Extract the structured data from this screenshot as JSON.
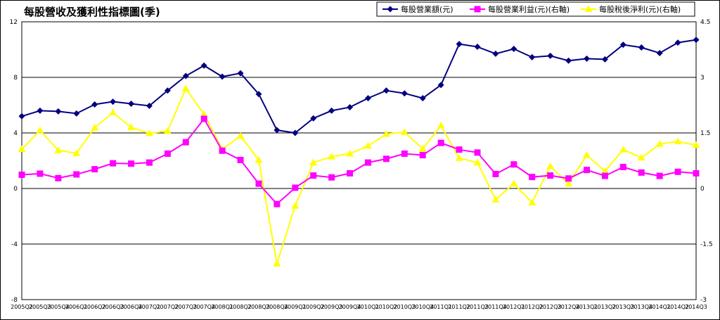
{
  "chart_data": {
    "type": "line",
    "title": "每股營收及獲利性指標圖(季)",
    "x": [
      "2005Q2",
      "2005Q3",
      "2005Q4",
      "2006Q1",
      "2006Q2",
      "2006Q3",
      "2006Q4",
      "2007Q1",
      "2007Q2",
      "2007Q3",
      "2007Q4",
      "2008Q1",
      "2008Q2",
      "2008Q3",
      "2008Q4",
      "2009Q1",
      "2009Q2",
      "2009Q3",
      "2009Q4",
      "2010Q1",
      "2010Q2",
      "2010Q3",
      "2010Q4",
      "2011Q1",
      "2011Q2",
      "2011Q3",
      "2011Q4",
      "2012Q1",
      "2012Q2",
      "2012Q3",
      "2012Q4",
      "2013Q1",
      "2013Q2",
      "2013Q3",
      "2013Q4",
      "2014Q1",
      "2014Q2",
      "2014Q3"
    ],
    "y_left": {
      "min": -8,
      "max": 12,
      "ticks": [
        12,
        8,
        4,
        0,
        -4,
        -8
      ]
    },
    "y_right": {
      "min": -3,
      "max": 4.5,
      "ticks": [
        4.5,
        3,
        1.5,
        0,
        -1.5,
        -3
      ]
    },
    "grid": true,
    "legend_placement": "top-right",
    "series": [
      {
        "name": "每股營業額(元)",
        "axis": "left",
        "color": "#000080",
        "marker": "diamond",
        "values": [
          5.2,
          5.6,
          5.55,
          5.4,
          6.05,
          6.25,
          6.1,
          5.95,
          7.05,
          8.1,
          8.85,
          8.05,
          8.3,
          6.8,
          4.2,
          4.0,
          5.05,
          5.6,
          5.85,
          6.5,
          7.05,
          6.85,
          6.5,
          7.45,
          10.4,
          10.2,
          9.7,
          10.05,
          9.45,
          9.55,
          9.2,
          9.35,
          9.3,
          10.35,
          10.15,
          9.75,
          10.5,
          10.7
        ]
      },
      {
        "name": "每股營業利益(元)(右軸)",
        "axis": "right",
        "color": "#FF00FF",
        "marker": "square",
        "values": [
          0.37,
          0.4,
          0.28,
          0.38,
          0.52,
          0.68,
          0.67,
          0.7,
          0.94,
          1.25,
          1.88,
          1.02,
          0.77,
          0.13,
          -0.42,
          0.02,
          0.35,
          0.3,
          0.41,
          0.7,
          0.8,
          0.94,
          0.9,
          1.23,
          1.05,
          0.97,
          0.39,
          0.65,
          0.31,
          0.35,
          0.27,
          0.5,
          0.34,
          0.58,
          0.43,
          0.34,
          0.45,
          0.41
        ]
      },
      {
        "name": "每股稅後淨利(元)(右軸)",
        "axis": "right",
        "color": "#FFFF00",
        "marker": "triangle",
        "values": [
          1.06,
          1.57,
          1.03,
          0.95,
          1.64,
          2.05,
          1.65,
          1.49,
          1.55,
          2.7,
          2.0,
          1.06,
          1.42,
          0.77,
          -2.03,
          -0.47,
          0.7,
          0.86,
          0.94,
          1.15,
          1.47,
          1.52,
          1.07,
          1.7,
          0.82,
          0.7,
          -0.3,
          0.13,
          -0.38,
          0.6,
          0.13,
          0.9,
          0.47,
          1.05,
          0.83,
          1.2,
          1.27,
          1.17
        ]
      }
    ]
  }
}
